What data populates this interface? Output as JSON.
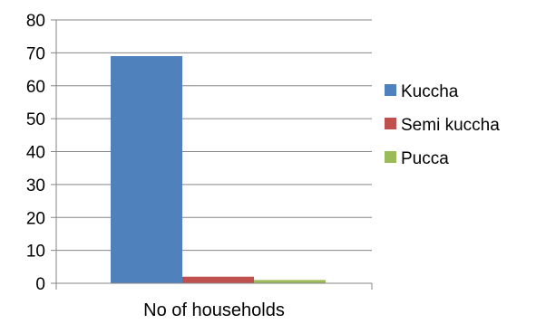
{
  "chart_data": {
    "type": "bar",
    "categories": [
      "No of households"
    ],
    "series": [
      {
        "name": "Kuccha",
        "values": [
          69
        ],
        "color": "#4F81BD"
      },
      {
        "name": "Semi kuccha",
        "values": [
          2
        ],
        "color": "#C0504D"
      },
      {
        "name": "Pucca",
        "values": [
          1
        ],
        "color": "#9BBB59"
      }
    ],
    "ylim": [
      0,
      80
    ],
    "yticks": [
      0,
      10,
      20,
      30,
      40,
      50,
      60,
      70,
      80
    ],
    "grid": true,
    "legend": "right",
    "title": "",
    "xlabel": "",
    "ylabel": ""
  }
}
